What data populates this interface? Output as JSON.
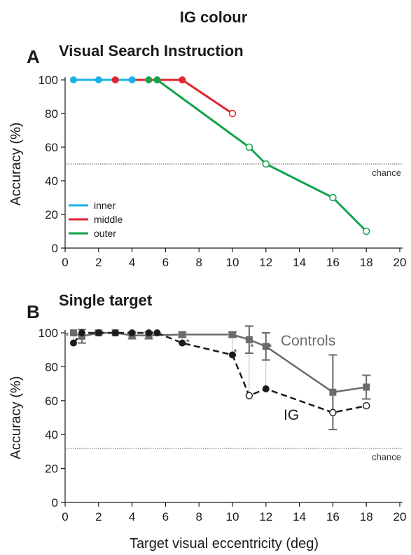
{
  "figure": {
    "title": "IG colour",
    "xlabel": "Target visual eccentricity (deg)"
  },
  "colors": {
    "inner": "#19b2e6",
    "middle": "#e0252e",
    "outer": "#14a34a",
    "controls": "#6b6b6b",
    "ig": "#1c1c1c",
    "axis": "#1a1a1a",
    "chance_line": "#555555"
  },
  "chart_data": [
    {
      "panel_letter": "A",
      "type": "line",
      "title": "Visual Search Instruction",
      "xlabel": "",
      "ylabel": "Accuracy (%)",
      "xlim": [
        0,
        20
      ],
      "ylim": [
        0,
        100
      ],
      "xticks": [
        "0",
        "2",
        "4",
        "6",
        "8",
        "10",
        "12",
        "14",
        "16",
        "18",
        "20"
      ],
      "yticks": [
        "0",
        "20",
        "40",
        "60",
        "80",
        "100"
      ],
      "reference": {
        "label": "chance",
        "y": 50
      },
      "legend_position": "bottom-left",
      "series": [
        {
          "name": "inner",
          "color_key": "inner",
          "points": [
            {
              "x": 0.5,
              "y": 100,
              "filled": true
            },
            {
              "x": 2,
              "y": 100,
              "filled": true
            },
            {
              "x": 4,
              "y": 100,
              "filled": true
            }
          ]
        },
        {
          "name": "middle",
          "color_key": "middle",
          "points": [
            {
              "x": 3,
              "y": 100,
              "filled": true
            },
            {
              "x": 7,
              "y": 100,
              "filled": true
            },
            {
              "x": 10,
              "y": 80,
              "filled": false
            }
          ]
        },
        {
          "name": "outer",
          "color_key": "outer",
          "points": [
            {
              "x": 5,
              "y": 100,
              "filled": true
            },
            {
              "x": 5.5,
              "y": 100,
              "filled": true
            },
            {
              "x": 11,
              "y": 60,
              "filled": false
            },
            {
              "x": 12,
              "y": 50,
              "filled": false
            },
            {
              "x": 16,
              "y": 30,
              "filled": false
            },
            {
              "x": 18,
              "y": 10,
              "filled": false
            }
          ]
        }
      ]
    },
    {
      "panel_letter": "B",
      "type": "line",
      "title": "Single target",
      "xlabel": "Target visual eccentricity (deg)",
      "ylabel": "Accuracy (%)",
      "xlim": [
        0,
        20
      ],
      "ylim": [
        0,
        100
      ],
      "xticks": [
        "0",
        "2",
        "4",
        "6",
        "8",
        "10",
        "12",
        "14",
        "16",
        "18",
        "20"
      ],
      "yticks": [
        "0",
        "20",
        "40",
        "60",
        "80",
        "100"
      ],
      "reference": {
        "label": "chance",
        "y": 32
      },
      "series": [
        {
          "name": "Controls",
          "color_key": "controls",
          "dashed": false,
          "marker": "square",
          "points": [
            {
              "x": 0.5,
              "y": 100,
              "err": 0
            },
            {
              "x": 1,
              "y": 98,
              "err": 4
            },
            {
              "x": 2,
              "y": 100,
              "err": 1
            },
            {
              "x": 3,
              "y": 100,
              "err": 0
            },
            {
              "x": 4,
              "y": 98.5,
              "err": 2
            },
            {
              "x": 5,
              "y": 98.5,
              "err": 2
            },
            {
              "x": 7,
              "y": 99,
              "err": 1.5
            },
            {
              "x": 10,
              "y": 99,
              "err": 1.5
            },
            {
              "x": 11,
              "y": 96,
              "err": 8
            },
            {
              "x": 12,
              "y": 92,
              "err": 8
            },
            {
              "x": 16,
              "y": 65,
              "err": 22
            },
            {
              "x": 18,
              "y": 68,
              "err": 7
            }
          ]
        },
        {
          "name": "IG",
          "color_key": "ig",
          "dashed": true,
          "marker": "circle",
          "points": [
            {
              "x": 0.5,
              "y": 94,
              "filled": true
            },
            {
              "x": 1,
              "y": 100,
              "filled": true
            },
            {
              "x": 2,
              "y": 100,
              "filled": true
            },
            {
              "x": 3,
              "y": 100,
              "filled": true
            },
            {
              "x": 4,
              "y": 100,
              "filled": true
            },
            {
              "x": 5,
              "y": 100,
              "filled": true
            },
            {
              "x": 5.5,
              "y": 100,
              "filled": true
            },
            {
              "x": 7,
              "y": 94,
              "filled": true
            },
            {
              "x": 10,
              "y": 87,
              "filled": true
            },
            {
              "x": 11,
              "y": 63,
              "filled": false
            },
            {
              "x": 12,
              "y": 67,
              "filled": true
            },
            {
              "x": 16,
              "y": 53,
              "filled": false
            },
            {
              "x": 18,
              "y": 57,
              "filled": false
            }
          ]
        }
      ],
      "significance": [
        {
          "label": "*",
          "x": 0.5
        },
        {
          "label": "*",
          "x": 7
        },
        {
          "label": "*",
          "x": 10
        },
        {
          "label": "*",
          "x": 11
        },
        {
          "label": "*",
          "x": 12
        }
      ]
    }
  ]
}
